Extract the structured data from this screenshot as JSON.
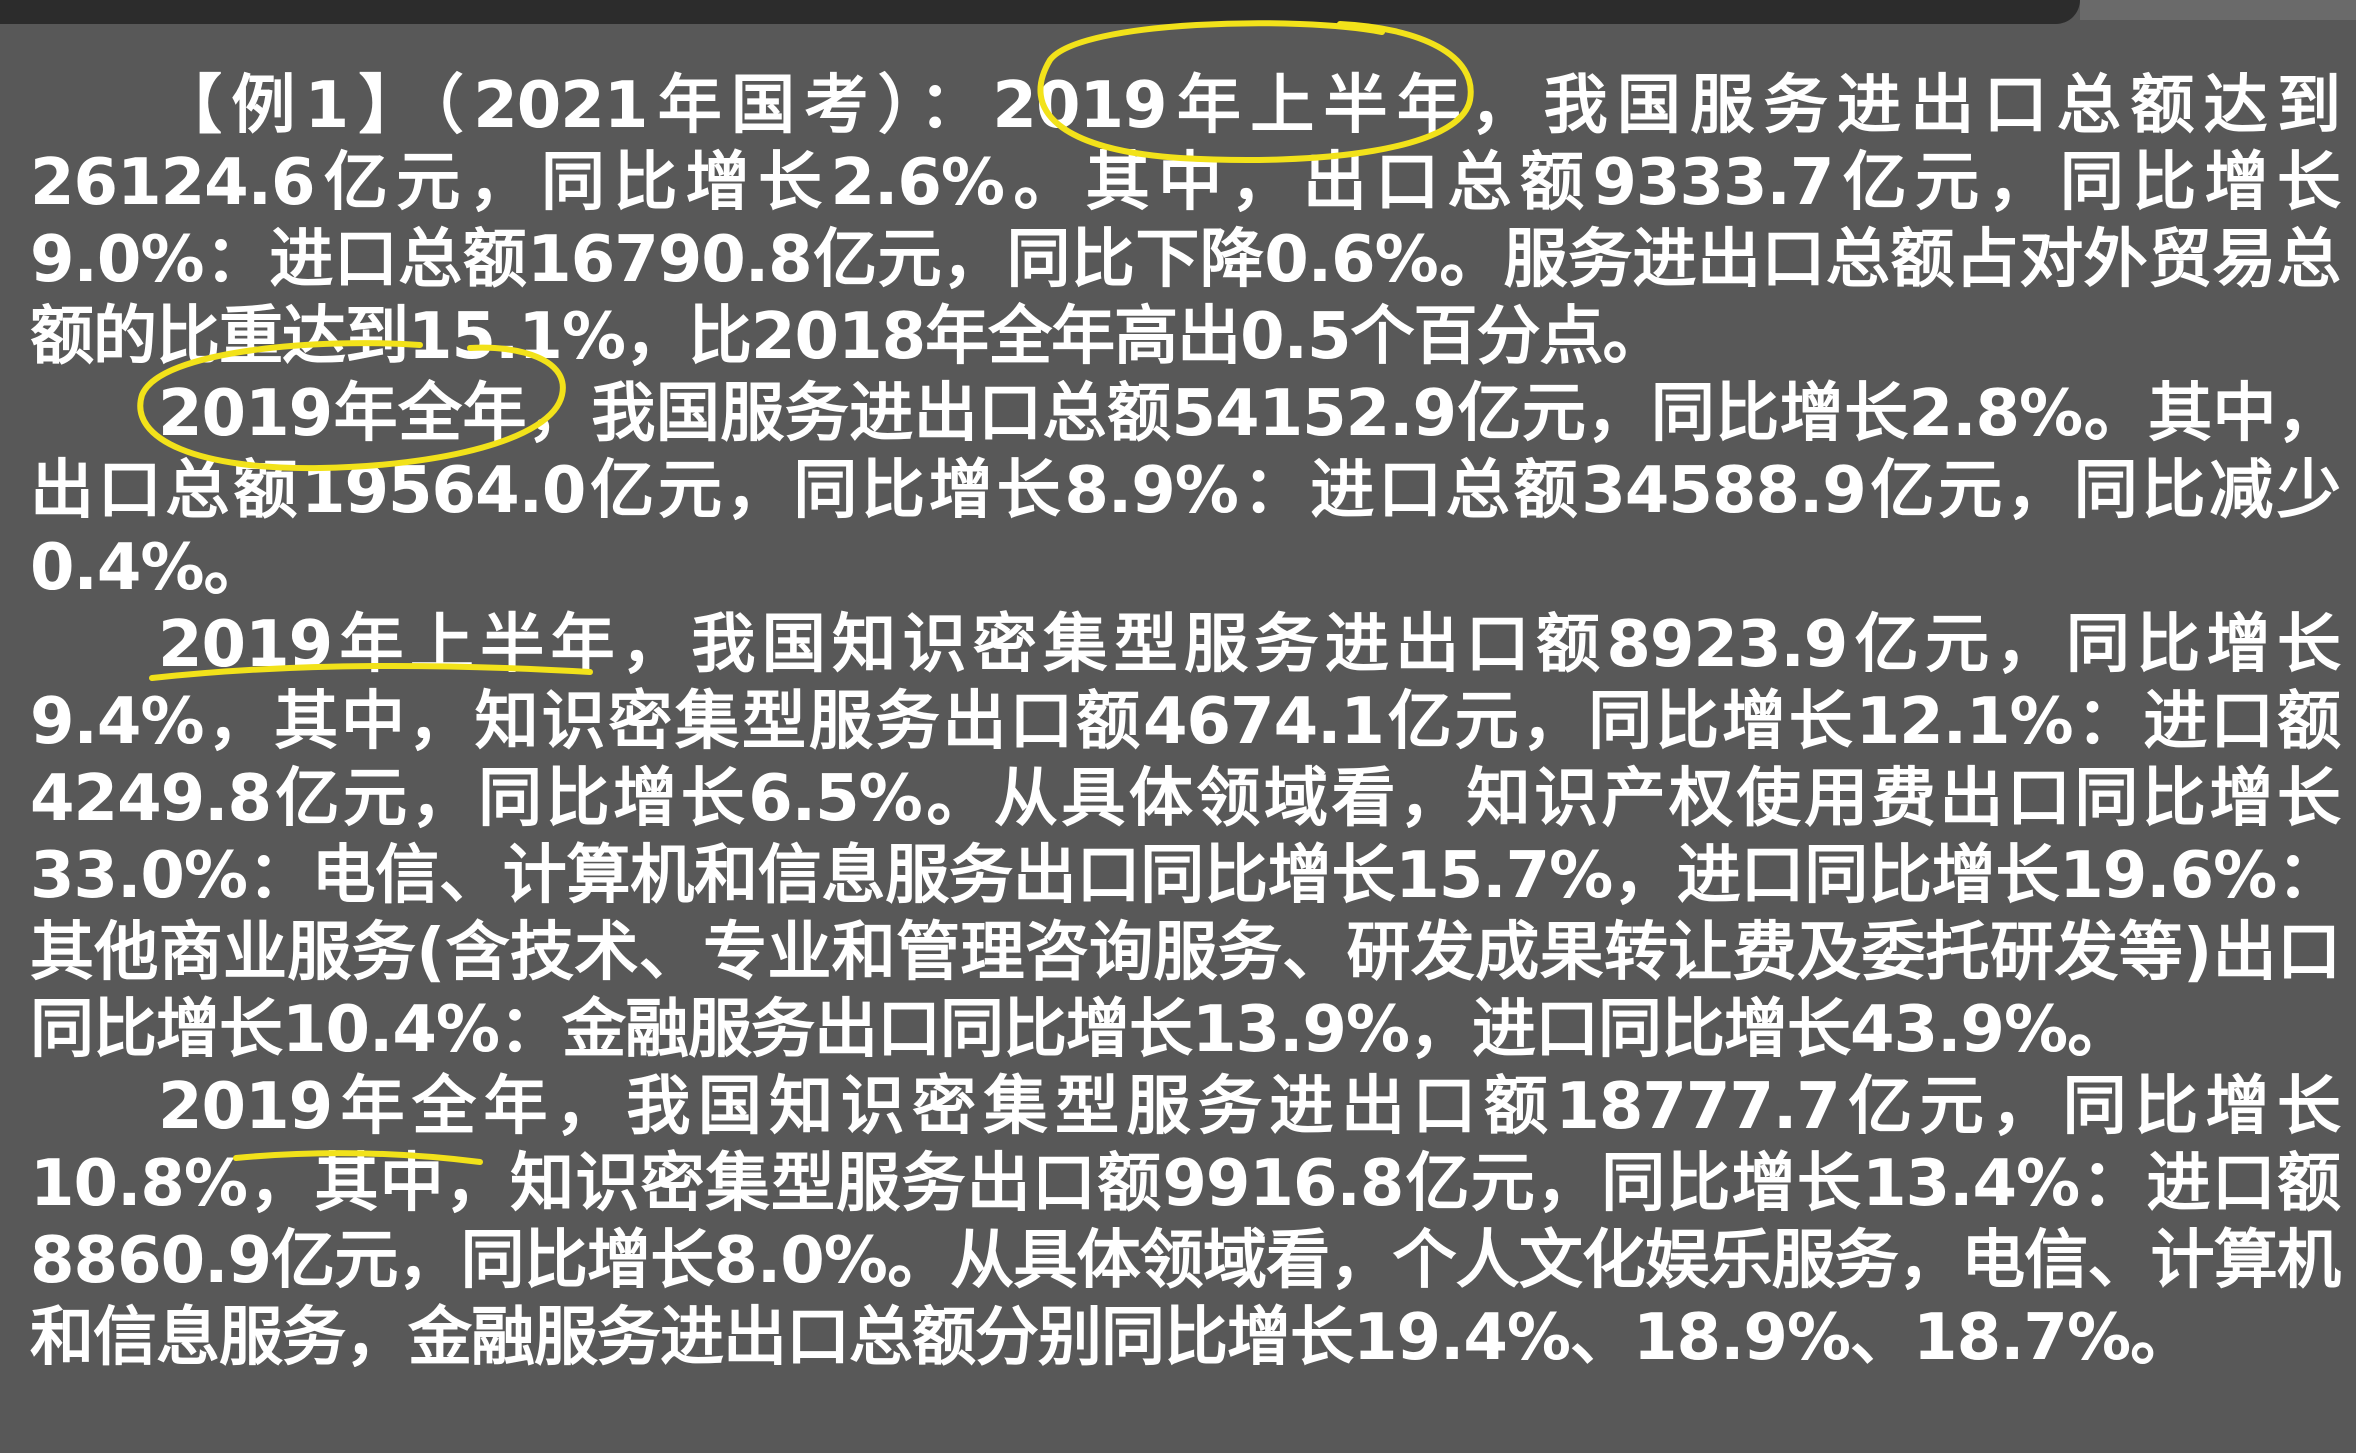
{
  "document": {
    "paragraphs": [
      "【例1】（2021年国考）：2019年上半年，我国服务进出口总额达到26124.6亿元，同比增长2.6%。其中，出口总额9333.7亿元，同比增长9.0%：进口总额16790.8亿元，同比下降0.6%。服务进出口总额占对外贸易总额的比重达到15.1%，比2018年全年高出0.5个百分点。",
      "2019年全年，我国服务进出口总额54152.9亿元，同比增长2.8%。其中，出口总额19564.0亿元，同比增长8.9%：进口总额34588.9亿元，同比减少0.4%。",
      "2019年上半年，我国知识密集型服务进出口额8923.9亿元，同比增长9.4%，其中，知识密集型服务出口额4674.1亿元，同比增长12.1%：进口额4249.8亿元，同比增长6.5%。从具体领域看，知识产权使用费出口同比增长33.0%：电信、计算机和信息服务出口同比增长15.7%，进口同比增长19.6%：其他商业服务(含技术、专业和管理咨询服务、研发成果转让费及委托研发等)出口同比增长10.4%：金融服务出口同比增长13.9%，进口同比增长43.9%。",
      "2019年全年，我国知识密集型服务进出口额18777.7亿元，同比增长10.8%，其中，知识密集型服务出口额9916.8亿元，同比增长13.4%：进口额8860.9亿元，同比增长8.0%。从具体领域看，个人文化娱乐服务，电信、计算机和信息服务，金融服务进出口总额分别同比增长19.4%、18.9%、18.7%。"
    ]
  },
  "annotation_color": "#f2e21a"
}
